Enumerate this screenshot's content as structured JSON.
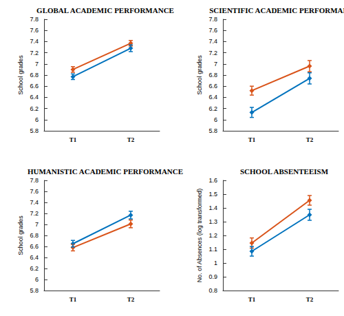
{
  "chart_data": [
    {
      "type": "line",
      "title": "GLOBAL ACADEMIC PERFORMANCE",
      "ylabel": "School grades",
      "categories": [
        "T1",
        "T2"
      ],
      "series": [
        {
          "color": "#d95319",
          "values": [
            6.9,
            7.37
          ],
          "errors": [
            0.05,
            0.05
          ],
          "marker": "diamond",
          "line_style": "solid"
        },
        {
          "color": "#0072bd",
          "values": [
            6.77,
            7.28
          ],
          "errors": [
            0.05,
            0.06
          ],
          "marker": "diamond",
          "line_style": "solid"
        }
      ],
      "ylim": [
        5.8,
        7.8
      ],
      "yticks": [
        5.8,
        6,
        6.2,
        6.4,
        6.6,
        6.8,
        7,
        7.2,
        7.4,
        7.6,
        7.8
      ],
      "grid": false
    },
    {
      "type": "line",
      "title": "SCIENTIFIC ACADEMIC PERFORMANCE",
      "ylabel": "School grades",
      "categories": [
        "T1",
        "T2"
      ],
      "series": [
        {
          "color": "#d95319",
          "values": [
            6.52,
            6.96
          ],
          "errors": [
            0.08,
            0.1
          ],
          "marker": "diamond",
          "line_style": "solid"
        },
        {
          "color": "#0072bd",
          "values": [
            6.13,
            6.74
          ],
          "errors": [
            0.09,
            0.1
          ],
          "marker": "diamond",
          "line_style": "solid"
        }
      ],
      "ylim": [
        5.8,
        7.8
      ],
      "yticks": [
        5.8,
        6,
        6.2,
        6.4,
        6.6,
        6.8,
        7,
        7.2,
        7.4,
        7.6,
        7.8
      ],
      "grid": false
    },
    {
      "type": "line",
      "title": "HUMANISTIC ACADEMIC PERFORMANCE",
      "ylabel": "School grades",
      "categories": [
        "T1",
        "T2"
      ],
      "series": [
        {
          "color": "#d95319",
          "values": [
            6.58,
            7.01
          ],
          "errors": [
            0.06,
            0.07
          ],
          "marker": "diamond",
          "line_style": "solid"
        },
        {
          "color": "#0072bd",
          "values": [
            6.65,
            7.17
          ],
          "errors": [
            0.06,
            0.07
          ],
          "marker": "diamond",
          "line_style": "solid"
        }
      ],
      "ylim": [
        5.8,
        7.8
      ],
      "yticks": [
        5.8,
        6,
        6.2,
        6.4,
        6.6,
        6.8,
        7,
        7.2,
        7.4,
        7.6,
        7.8
      ],
      "grid": false
    },
    {
      "type": "line",
      "title": "SCHOOL ABSENTEEISM",
      "ylabel": "No. of Absences (log transformed)",
      "categories": [
        "T1",
        "T2"
      ],
      "series": [
        {
          "color": "#d95319",
          "values": [
            1.145,
            1.455
          ],
          "errors": [
            0.037,
            0.035
          ],
          "marker": "diamond",
          "line_style": "solid"
        },
        {
          "color": "#0072bd",
          "values": [
            1.085,
            1.35
          ],
          "errors": [
            0.035,
            0.04
          ],
          "marker": "diamond",
          "line_style": "solid"
        }
      ],
      "ylim": [
        0.8,
        1.6
      ],
      "yticks": [
        0.8,
        0.9,
        1,
        1.1,
        1.2,
        1.3,
        1.4,
        1.5,
        1.6
      ],
      "grid": false
    }
  ]
}
